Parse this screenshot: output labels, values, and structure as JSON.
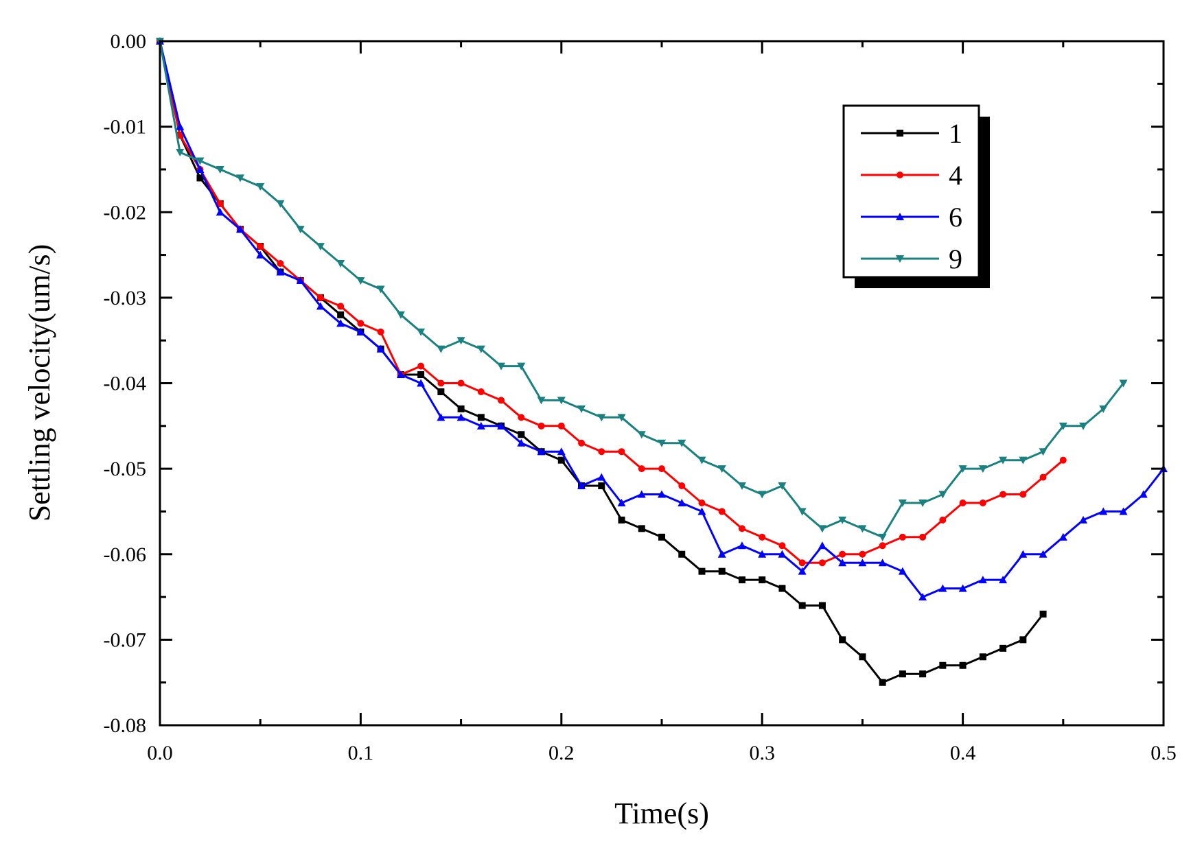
{
  "chart_data": {
    "type": "line",
    "title": "",
    "xlabel": "Time(s)",
    "ylabel": "Settling velocity(um/s)",
    "xlim": [
      0.0,
      0.5
    ],
    "ylim": [
      -0.08,
      0.0
    ],
    "x_ticks": [
      "0.0",
      "0.1",
      "0.2",
      "0.3",
      "0.4",
      "0.5"
    ],
    "y_ticks": [
      "0.00",
      "-0.01",
      "-0.02",
      "-0.03",
      "-0.04",
      "-0.05",
      "-0.06",
      "-0.07",
      "-0.08"
    ],
    "grid": false,
    "legend_position": "top-right",
    "series": [
      {
        "name": "1",
        "color": "#000000",
        "marker": "square",
        "x": [
          0,
          0.01,
          0.02,
          0.03,
          0.04,
          0.05,
          0.06,
          0.07,
          0.08,
          0.09,
          0.1,
          0.11,
          0.12,
          0.13,
          0.14,
          0.15,
          0.16,
          0.17,
          0.18,
          0.19,
          0.2,
          0.21,
          0.22,
          0.23,
          0.24,
          0.25,
          0.26,
          0.27,
          0.28,
          0.29,
          0.3,
          0.31,
          0.32,
          0.33,
          0.34,
          0.35,
          0.36,
          0.37,
          0.38,
          0.39,
          0.4,
          0.41,
          0.42,
          0.43,
          0.44
        ],
        "y": [
          0,
          -0.011,
          -0.016,
          -0.019,
          -0.022,
          -0.024,
          -0.027,
          -0.028,
          -0.03,
          -0.032,
          -0.034,
          -0.036,
          -0.039,
          -0.039,
          -0.041,
          -0.043,
          -0.044,
          -0.045,
          -0.046,
          -0.048,
          -0.049,
          -0.052,
          -0.052,
          -0.056,
          -0.057,
          -0.058,
          -0.06,
          -0.062,
          -0.062,
          -0.063,
          -0.063,
          -0.064,
          -0.066,
          -0.066,
          -0.07,
          -0.072,
          -0.075,
          -0.074,
          -0.074,
          -0.073,
          -0.073,
          -0.072,
          -0.071,
          -0.07,
          -0.067
        ]
      },
      {
        "name": "4",
        "color": "#ff0000",
        "marker": "circle",
        "x": [
          0,
          0.01,
          0.02,
          0.03,
          0.04,
          0.05,
          0.06,
          0.07,
          0.08,
          0.09,
          0.1,
          0.11,
          0.12,
          0.13,
          0.14,
          0.15,
          0.16,
          0.17,
          0.18,
          0.19,
          0.2,
          0.21,
          0.22,
          0.23,
          0.24,
          0.25,
          0.26,
          0.27,
          0.28,
          0.29,
          0.3,
          0.31,
          0.32,
          0.33,
          0.34,
          0.35,
          0.36,
          0.37,
          0.38,
          0.39,
          0.4,
          0.41,
          0.42,
          0.43,
          0.44,
          0.45
        ],
        "y": [
          0,
          -0.011,
          -0.015,
          -0.019,
          -0.022,
          -0.024,
          -0.026,
          -0.028,
          -0.03,
          -0.031,
          -0.033,
          -0.034,
          -0.039,
          -0.038,
          -0.04,
          -0.04,
          -0.041,
          -0.042,
          -0.044,
          -0.045,
          -0.045,
          -0.047,
          -0.048,
          -0.048,
          -0.05,
          -0.05,
          -0.052,
          -0.054,
          -0.055,
          -0.057,
          -0.058,
          -0.059,
          -0.061,
          -0.061,
          -0.06,
          -0.06,
          -0.059,
          -0.058,
          -0.058,
          -0.056,
          -0.054,
          -0.054,
          -0.053,
          -0.053,
          -0.051,
          -0.049
        ]
      },
      {
        "name": "6",
        "color": "#0000ff",
        "marker": "triangle-up",
        "x": [
          0,
          0.01,
          0.02,
          0.03,
          0.04,
          0.05,
          0.06,
          0.07,
          0.08,
          0.09,
          0.1,
          0.11,
          0.12,
          0.13,
          0.14,
          0.15,
          0.16,
          0.17,
          0.18,
          0.19,
          0.2,
          0.21,
          0.22,
          0.23,
          0.24,
          0.25,
          0.26,
          0.27,
          0.28,
          0.29,
          0.3,
          0.31,
          0.32,
          0.33,
          0.34,
          0.35,
          0.36,
          0.37,
          0.38,
          0.39,
          0.4,
          0.41,
          0.42,
          0.43,
          0.44,
          0.45,
          0.46,
          0.47,
          0.48,
          0.49,
          0.5
        ],
        "y": [
          0,
          -0.01,
          -0.015,
          -0.02,
          -0.022,
          -0.025,
          -0.027,
          -0.028,
          -0.031,
          -0.033,
          -0.034,
          -0.036,
          -0.039,
          -0.04,
          -0.044,
          -0.044,
          -0.045,
          -0.045,
          -0.047,
          -0.048,
          -0.048,
          -0.052,
          -0.051,
          -0.054,
          -0.053,
          -0.053,
          -0.054,
          -0.055,
          -0.06,
          -0.059,
          -0.06,
          -0.06,
          -0.062,
          -0.059,
          -0.061,
          -0.061,
          -0.061,
          -0.062,
          -0.065,
          -0.064,
          -0.064,
          -0.063,
          -0.063,
          -0.06,
          -0.06,
          -0.058,
          -0.056,
          -0.055,
          -0.055,
          -0.053,
          -0.05
        ]
      },
      {
        "name": "9",
        "color": "#1a8080",
        "marker": "triangle-down",
        "x": [
          0,
          0.01,
          0.02,
          0.03,
          0.04,
          0.05,
          0.06,
          0.07,
          0.08,
          0.09,
          0.1,
          0.11,
          0.12,
          0.13,
          0.14,
          0.15,
          0.16,
          0.17,
          0.18,
          0.19,
          0.2,
          0.21,
          0.22,
          0.23,
          0.24,
          0.25,
          0.26,
          0.27,
          0.28,
          0.29,
          0.3,
          0.31,
          0.32,
          0.33,
          0.34,
          0.35,
          0.36,
          0.37,
          0.38,
          0.39,
          0.4,
          0.41,
          0.42,
          0.43,
          0.44,
          0.45,
          0.46,
          0.47,
          0.48
        ],
        "y": [
          0,
          -0.013,
          -0.014,
          -0.015,
          -0.016,
          -0.017,
          -0.019,
          -0.022,
          -0.024,
          -0.026,
          -0.028,
          -0.029,
          -0.032,
          -0.034,
          -0.036,
          -0.035,
          -0.036,
          -0.038,
          -0.038,
          -0.042,
          -0.042,
          -0.043,
          -0.044,
          -0.044,
          -0.046,
          -0.047,
          -0.047,
          -0.049,
          -0.05,
          -0.052,
          -0.053,
          -0.052,
          -0.055,
          -0.057,
          -0.056,
          -0.057,
          -0.058,
          -0.054,
          -0.054,
          -0.053,
          -0.05,
          -0.05,
          -0.049,
          -0.049,
          -0.048,
          -0.045,
          -0.045,
          -0.043,
          -0.04
        ]
      }
    ]
  }
}
